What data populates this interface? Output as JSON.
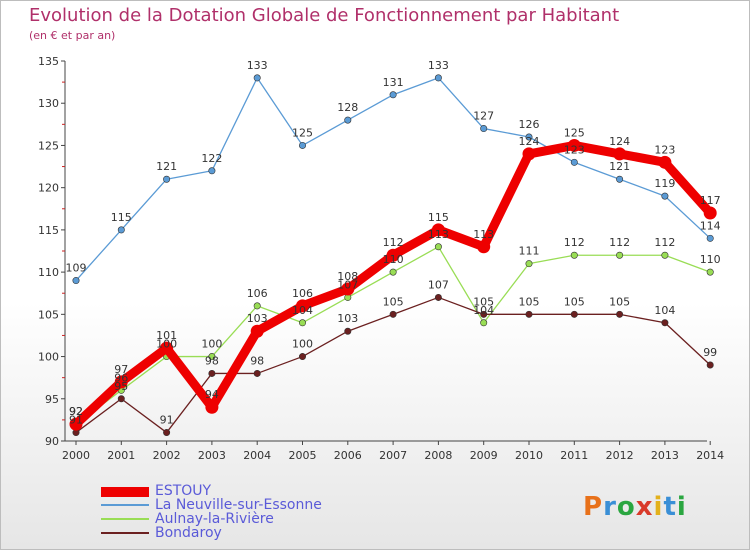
{
  "title": "Evolution de la Dotation Globale de Fonctionnement par Habitant",
  "subtitle": "(en € et par an)",
  "logo": {
    "text": "Proxiti",
    "colors": [
      "#e8711a",
      "#3a8fd6",
      "#2aa640",
      "#d93a2a",
      "#e3b11c",
      "#3a8fd6",
      "#2aa640"
    ]
  },
  "chart_data": {
    "type": "line",
    "title": "Evolution de la Dotation Globale de Fonctionnement par Habitant",
    "subtitle": "(en € et par an)",
    "x": [
      "2000",
      "2001",
      "2002",
      "2003",
      "2004",
      "2005",
      "2006",
      "2007",
      "2008",
      "2009",
      "2010",
      "2011",
      "2012",
      "2013",
      "2014"
    ],
    "ylim": [
      90,
      135
    ],
    "yticks": [
      90,
      95,
      100,
      105,
      110,
      115,
      120,
      125,
      130,
      135
    ],
    "grid": false,
    "legend_position": "bottom-left",
    "series": [
      {
        "name": "ESTOUY",
        "color": "#ee0000",
        "values": [
          92,
          97,
          101,
          94,
          103,
          106,
          108,
          112,
          115,
          113,
          124,
          125,
          124,
          123,
          117
        ]
      },
      {
        "name": "La Neuville-sur-Essonne",
        "color": "#5b9bd5",
        "values": [
          109,
          115,
          121,
          122,
          133,
          125,
          128,
          131,
          133,
          127,
          126,
          123,
          121,
          119,
          114
        ]
      },
      {
        "name": "Aulnay-la-Rivière",
        "color": "#99dd55",
        "values": [
          92,
          96,
          100,
          100,
          106,
          104,
          107,
          110,
          113,
          104,
          111,
          112,
          112,
          112,
          110
        ]
      },
      {
        "name": "Bondaroy",
        "color": "#6b2020",
        "values": [
          91,
          95,
          91,
          98,
          98,
          100,
          103,
          105,
          107,
          105,
          105,
          105,
          105,
          104,
          99
        ]
      }
    ]
  }
}
